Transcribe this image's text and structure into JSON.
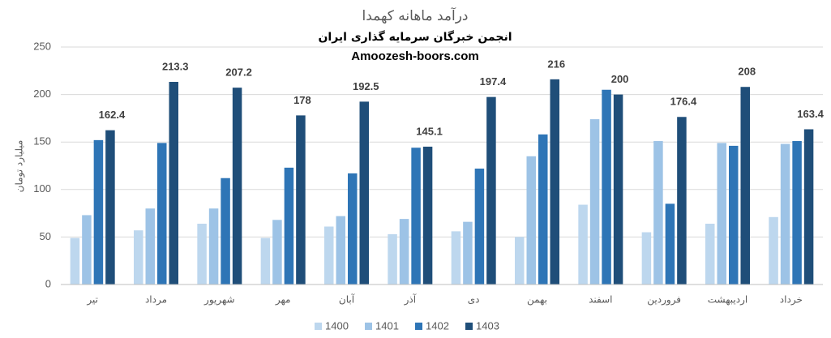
{
  "chart_data": {
    "type": "bar",
    "title": "درآمد ماهانه کهمدا",
    "subtitle": "انجمن خبرگان سرمایه گذاری ایران",
    "source": "Amoozesh-boors.com",
    "y_label": "میلیارد تومان",
    "categories": [
      "تیر",
      "مرداد",
      "شهریور",
      "مهر",
      "آبان",
      "آذر",
      "دی",
      "بهمن",
      "اسفند",
      "فروردین",
      "اردیبهشت",
      "خرداد"
    ],
    "series": [
      {
        "name": "1400",
        "color": "#bdd7ee",
        "values": [
          49,
          57,
          64,
          49,
          61,
          53,
          56,
          50,
          84,
          55,
          64,
          71
        ]
      },
      {
        "name": "1401",
        "color": "#9dc3e6",
        "values": [
          73,
          80,
          80,
          68,
          72,
          69,
          66,
          135,
          174,
          151,
          149,
          148
        ]
      },
      {
        "name": "1402",
        "color": "#2e75b6",
        "values": [
          152,
          149,
          112,
          123,
          117,
          144,
          122,
          158,
          205,
          85,
          146,
          151
        ]
      },
      {
        "name": "1403",
        "color": "#1f4e79",
        "values": [
          162.4,
          213.3,
          207.2,
          178,
          192.5,
          145.1,
          197.4,
          216,
          200,
          176.4,
          208,
          163.4
        ],
        "data_labels": true
      }
    ],
    "ylim": [
      0,
      250
    ],
    "yticks": [
      0,
      50,
      100,
      150,
      200,
      250
    ],
    "grid": true,
    "legend": "bottom"
  }
}
